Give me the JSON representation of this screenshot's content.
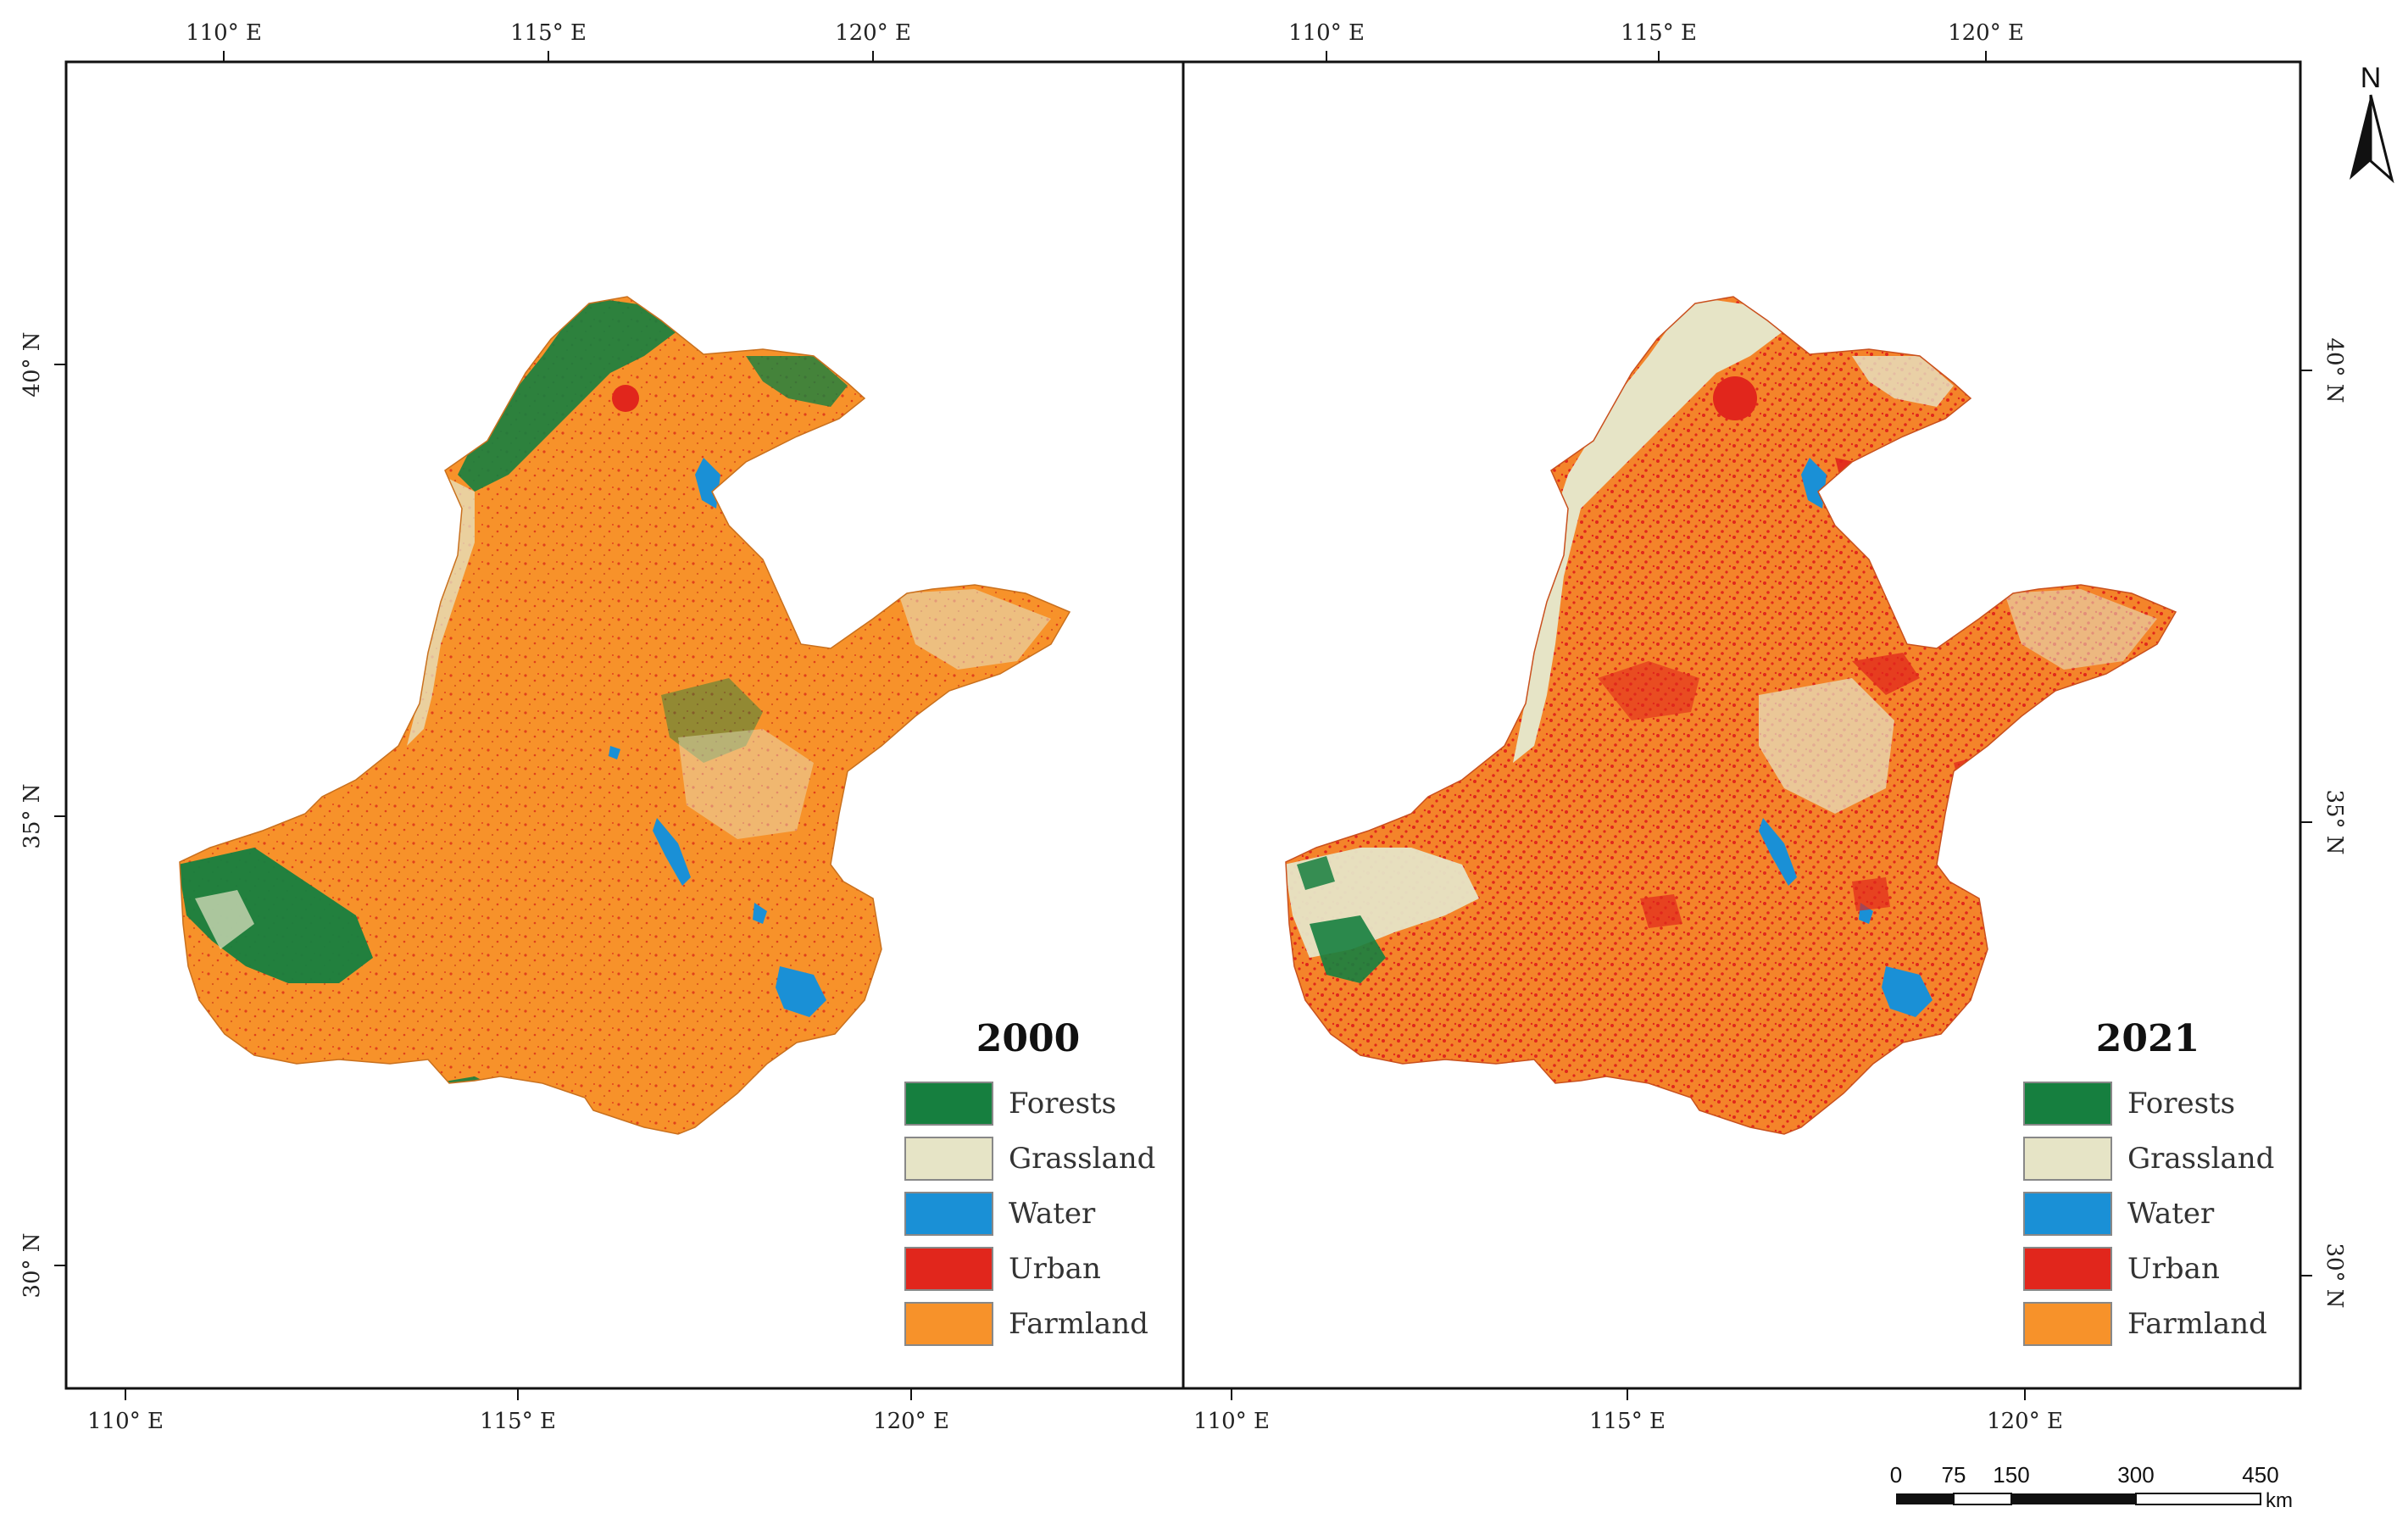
{
  "panels": [
    {
      "year": "2000",
      "top_lon_labels": [
        "110° E",
        "115° E",
        "120° E"
      ],
      "bottom_lon_labels": [
        "110° E",
        "115° E",
        "120° E"
      ],
      "left_lat_labels": [
        "40° N",
        "35° N",
        "30° N"
      ]
    },
    {
      "year": "2021",
      "top_lon_labels": [
        "110° E",
        "115° E",
        "120° E"
      ],
      "bottom_lon_labels": [
        "110° E",
        "115° E",
        "120° E"
      ],
      "right_lat_labels": [
        "40° N",
        "35° N",
        "30° N"
      ]
    }
  ],
  "legend": [
    {
      "label": "Forests",
      "color": "#167f3f"
    },
    {
      "label": "Grassland",
      "color": "#e6e4c6"
    },
    {
      "label": "Water",
      "color": "#1a90d6"
    },
    {
      "label": "Urban",
      "color": "#e1261c"
    },
    {
      "label": "Farmland",
      "color": "#f7922a"
    }
  ],
  "north_arrow": {
    "letter": "N"
  },
  "scale_bar": {
    "ticks": [
      "0",
      "75",
      "150",
      "300",
      "450"
    ],
    "unit": "km"
  }
}
